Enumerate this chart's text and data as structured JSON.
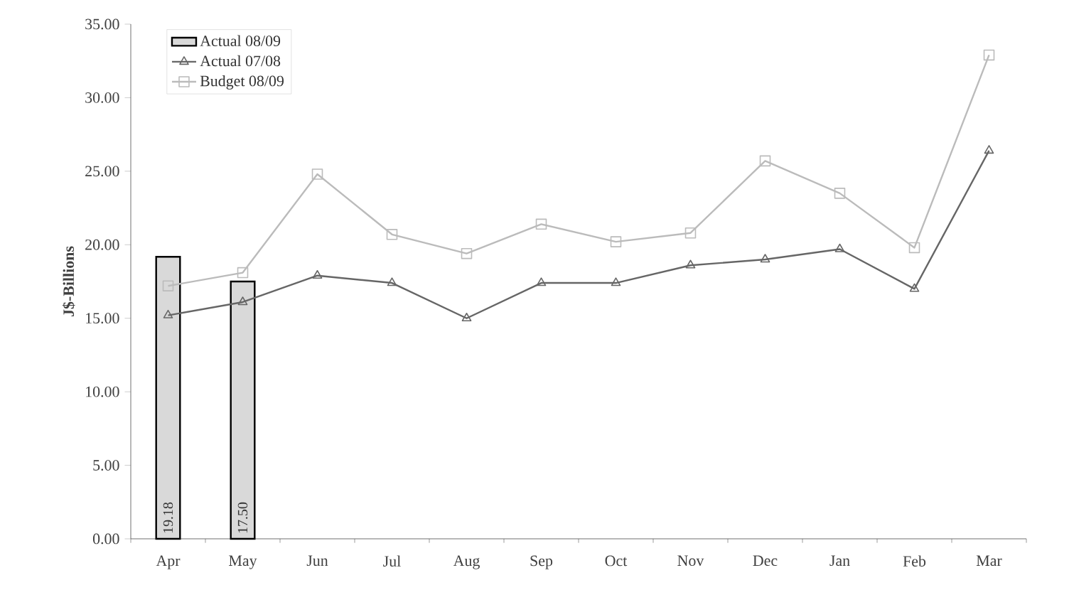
{
  "chart_data": {
    "type": "line",
    "ylabel": "J$-Billions",
    "categories": [
      "Apr",
      "May",
      "Jun",
      "Jul",
      "Aug",
      "Sep",
      "Oct",
      "Nov",
      "Dec",
      "Jan",
      "Feb",
      "Mar"
    ],
    "series": [
      {
        "name": "Actual 08/09",
        "type": "bar",
        "color": "#d9d9d9",
        "values": [
          19.18,
          17.5,
          null,
          null,
          null,
          null,
          null,
          null,
          null,
          null,
          null,
          null
        ],
        "value_labels": [
          "19.18",
          "17.50",
          null,
          null,
          null,
          null,
          null,
          null,
          null,
          null,
          null,
          null
        ]
      },
      {
        "name": "Actual 07/08",
        "color": "#666666",
        "marker": "triangle",
        "values": [
          15.2,
          16.1,
          17.9,
          17.4,
          15.0,
          17.4,
          17.4,
          18.6,
          19.0,
          19.7,
          17.0,
          26.4
        ]
      },
      {
        "name": "Budget 08/09",
        "color": "#bbbbbb",
        "marker": "square",
        "values": [
          17.2,
          18.1,
          24.8,
          20.7,
          19.4,
          21.4,
          20.2,
          20.8,
          25.7,
          23.5,
          19.8,
          32.9
        ]
      }
    ],
    "ylim": [
      0,
      35
    ],
    "yticks": [
      {
        "value": 0,
        "label": "0.00"
      },
      {
        "value": 5,
        "label": "5.00"
      },
      {
        "value": 10,
        "label": "10.00"
      },
      {
        "value": 15,
        "label": "15.00"
      },
      {
        "value": 20,
        "label": "20.00"
      },
      {
        "value": 25,
        "label": "25.00"
      },
      {
        "value": 30,
        "label": "30.00"
      },
      {
        "value": 35,
        "label": "35.00"
      }
    ],
    "legend": "top left",
    "grid": false
  }
}
